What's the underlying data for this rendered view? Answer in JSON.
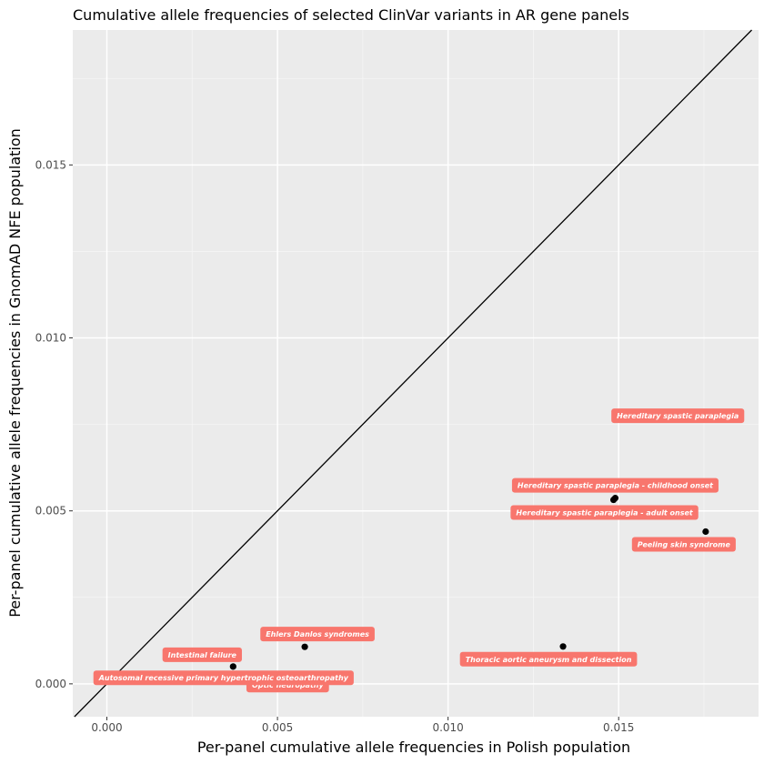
{
  "chart_data": {
    "type": "scatter",
    "title": "Cumulative allele frequencies of selected ClinVar variants in AR gene panels",
    "xlabel": "Per-panel cumulative allele frequencies in Polish population",
    "ylabel": "Per-panel cumulative allele frequencies in GnomAD NFE population",
    "xlim": [
      -0.001,
      0.0191
    ],
    "ylim": [
      -0.00095,
      0.0189
    ],
    "xticks": [
      {
        "value": 0.0,
        "label": "0.000"
      },
      {
        "value": 0.005,
        "label": "0.005"
      },
      {
        "value": 0.01,
        "label": "0.010"
      },
      {
        "value": 0.015,
        "label": "0.015"
      }
    ],
    "yticks": [
      {
        "value": 0.0,
        "label": "0.000"
      },
      {
        "value": 0.005,
        "label": "0.005"
      },
      {
        "value": 0.01,
        "label": "0.010"
      },
      {
        "value": 0.015,
        "label": "0.015"
      }
    ],
    "reference_line": {
      "slope": 1,
      "intercept": 0
    },
    "grid": true,
    "label_color": "#f8766d",
    "points": [
      {
        "x": 0.017,
        "y": 0.00775,
        "label": "Hereditary spastic paraplegia"
      },
      {
        "x": 0.0149,
        "y": 0.00537,
        "label": "Hereditary spastic paraplegia - childhood onset"
      },
      {
        "x": 0.01485,
        "y": 0.00532,
        "label": "Hereditary spastic paraplegia - adult onset"
      },
      {
        "x": 0.01755,
        "y": 0.0044,
        "label": "Peeling skin syndrome"
      },
      {
        "x": 0.01337,
        "y": 0.00108,
        "label": "Thoracic aortic aneurysm and dissection"
      },
      {
        "x": 0.0058,
        "y": 0.00107,
        "label": "Ehlers Danlos syndromes"
      },
      {
        "x": 0.0037,
        "y": 0.0005,
        "label": "Intestinal failure"
      },
      {
        "x": 0.0053,
        "y": 0.00028,
        "label": "Optic neuropathy"
      },
      {
        "x": 0.0031,
        "y": 0.00028,
        "label": "Autosomal recessive primary hypertrophic osteoarthropathy"
      }
    ]
  }
}
